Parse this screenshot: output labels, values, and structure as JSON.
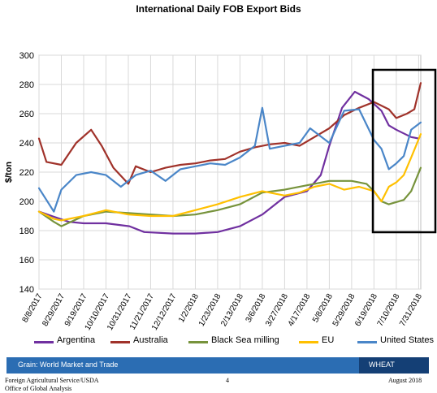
{
  "chart_data": {
    "type": "line",
    "title": "International Daily FOB Export Bids",
    "ylabel": "$/ton",
    "xlabel": "",
    "ylim": [
      140,
      300
    ],
    "yticks": [
      140,
      160,
      180,
      200,
      220,
      240,
      260,
      280,
      300
    ],
    "x_tick_labels": [
      "8/8/2017",
      "8/29/2017",
      "9/19/2017",
      "10/10/2017",
      "10/31/2017",
      "11/21/2017",
      "12/12/2017",
      "1/2/2018",
      "1/23/2018",
      "2/13/2018",
      "3/6/2018",
      "3/27/2018",
      "4/17/2018",
      "5/8/2018",
      "5/29/2018",
      "6/19/2018",
      "7/10/2018",
      "7/31/2018"
    ],
    "grid": true,
    "legend_position": "bottom",
    "highlight_box": {
      "from": "6/21/2018",
      "to": "8/2/2018",
      "color": "#000000"
    },
    "series": [
      {
        "name": "Argentina",
        "color": "#7030a0",
        "points": [
          [
            "8/8/2017",
            193
          ],
          [
            "8/20/2017",
            190
          ],
          [
            "9/5/2017",
            186
          ],
          [
            "9/19/2017",
            185
          ],
          [
            "10/10/2017",
            185
          ],
          [
            "11/1/2017",
            183
          ],
          [
            "11/15/2017",
            179
          ],
          [
            "12/12/2017",
            178
          ],
          [
            "1/2/2018",
            178
          ],
          [
            "1/23/2018",
            179
          ],
          [
            "2/13/2018",
            183
          ],
          [
            "3/6/2018",
            191
          ],
          [
            "3/20/2018",
            199
          ],
          [
            "3/27/2018",
            203
          ],
          [
            "4/17/2018",
            207
          ],
          [
            "4/30/2018",
            218
          ],
          [
            "5/8/2018",
            238
          ],
          [
            "5/20/2018",
            264
          ],
          [
            "6/1/2018",
            275
          ],
          [
            "6/14/2018",
            270
          ],
          [
            "6/26/2018",
            262
          ],
          [
            "7/3/2018",
            252
          ],
          [
            "7/10/2018",
            249
          ],
          [
            "7/24/2018",
            244
          ],
          [
            "7/31/2018",
            243
          ]
        ]
      },
      {
        "name": "Australia",
        "color": "#a0322a",
        "points": [
          [
            "8/8/2017",
            243
          ],
          [
            "8/15/2017",
            227
          ],
          [
            "8/29/2017",
            225
          ],
          [
            "9/12/2017",
            240
          ],
          [
            "9/26/2017",
            249
          ],
          [
            "10/6/2017",
            238
          ],
          [
            "10/17/2017",
            223
          ],
          [
            "10/31/2017",
            212
          ],
          [
            "11/7/2017",
            224
          ],
          [
            "11/21/2017",
            220
          ],
          [
            "12/5/2017",
            223
          ],
          [
            "12/19/2017",
            225
          ],
          [
            "1/2/2018",
            226
          ],
          [
            "1/16/2018",
            228
          ],
          [
            "1/30/2018",
            229
          ],
          [
            "2/13/2018",
            234
          ],
          [
            "2/27/2018",
            237
          ],
          [
            "3/13/2018",
            239
          ],
          [
            "3/27/2018",
            240
          ],
          [
            "4/10/2018",
            238
          ],
          [
            "4/24/2018",
            244
          ],
          [
            "5/8/2018",
            250
          ],
          [
            "5/22/2018",
            259
          ],
          [
            "6/5/2018",
            264
          ],
          [
            "6/19/2018",
            268
          ],
          [
            "7/3/2018",
            263
          ],
          [
            "7/10/2018",
            257
          ],
          [
            "7/20/2018",
            260
          ],
          [
            "7/27/2018",
            263
          ],
          [
            "8/2/2018",
            281
          ]
        ]
      },
      {
        "name": "Black Sea milling",
        "color": "#77933c",
        "points": [
          [
            "8/8/2017",
            193
          ],
          [
            "8/22/2017",
            186
          ],
          [
            "8/29/2017",
            183
          ],
          [
            "9/19/2017",
            190
          ],
          [
            "10/10/2017",
            193
          ],
          [
            "10/31/2017",
            192
          ],
          [
            "11/21/2017",
            191
          ],
          [
            "12/12/2017",
            190
          ],
          [
            "1/2/2018",
            191
          ],
          [
            "1/23/2018",
            194
          ],
          [
            "2/13/2018",
            198
          ],
          [
            "3/6/2018",
            206
          ],
          [
            "3/27/2018",
            208
          ],
          [
            "4/17/2018",
            211
          ],
          [
            "5/8/2018",
            214
          ],
          [
            "5/29/2018",
            214
          ],
          [
            "6/12/2018",
            212
          ],
          [
            "6/19/2018",
            207
          ],
          [
            "6/26/2018",
            200
          ],
          [
            "7/3/2018",
            198
          ],
          [
            "7/17/2018",
            201
          ],
          [
            "7/24/2018",
            207
          ],
          [
            "8/2/2018",
            223
          ]
        ]
      },
      {
        "name": "EU",
        "color": "#ffc000",
        "points": [
          [
            "8/8/2017",
            193
          ],
          [
            "8/22/2017",
            188
          ],
          [
            "8/29/2017",
            187
          ],
          [
            "9/19/2017",
            190
          ],
          [
            "10/10/2017",
            194
          ],
          [
            "10/31/2017",
            191
          ],
          [
            "11/21/2017",
            190
          ],
          [
            "12/12/2017",
            190
          ],
          [
            "1/2/2018",
            194
          ],
          [
            "1/23/2018",
            198
          ],
          [
            "2/13/2018",
            203
          ],
          [
            "3/6/2018",
            207
          ],
          [
            "3/27/2018",
            204
          ],
          [
            "4/10/2018",
            206
          ],
          [
            "4/24/2018",
            210
          ],
          [
            "5/8/2018",
            212
          ],
          [
            "5/22/2018",
            208
          ],
          [
            "6/5/2018",
            210
          ],
          [
            "6/19/2018",
            207
          ],
          [
            "6/26/2018",
            200
          ],
          [
            "7/3/2018",
            210
          ],
          [
            "7/10/2018",
            213
          ],
          [
            "7/17/2018",
            218
          ],
          [
            "7/24/2018",
            230
          ],
          [
            "8/2/2018",
            246
          ]
        ]
      },
      {
        "name": "United States",
        "color": "#4a86c8",
        "points": [
          [
            "8/8/2017",
            209
          ],
          [
            "8/22/2017",
            193
          ],
          [
            "8/29/2017",
            208
          ],
          [
            "9/12/2017",
            218
          ],
          [
            "9/26/2017",
            220
          ],
          [
            "10/10/2017",
            218
          ],
          [
            "10/24/2017",
            210
          ],
          [
            "11/7/2017",
            218
          ],
          [
            "11/21/2017",
            221
          ],
          [
            "12/5/2017",
            214
          ],
          [
            "12/19/2017",
            222
          ],
          [
            "1/2/2018",
            224
          ],
          [
            "1/16/2018",
            226
          ],
          [
            "1/30/2018",
            225
          ],
          [
            "2/13/2018",
            230
          ],
          [
            "2/27/2018",
            238
          ],
          [
            "3/6/2018",
            264
          ],
          [
            "3/13/2018",
            236
          ],
          [
            "3/27/2018",
            238
          ],
          [
            "4/10/2018",
            240
          ],
          [
            "4/20/2018",
            250
          ],
          [
            "5/8/2018",
            240
          ],
          [
            "5/22/2018",
            262
          ],
          [
            "6/5/2018",
            263
          ],
          [
            "6/19/2018",
            242
          ],
          [
            "6/26/2018",
            236
          ],
          [
            "7/3/2018",
            222
          ],
          [
            "7/10/2018",
            226
          ],
          [
            "7/17/2018",
            231
          ],
          [
            "7/24/2018",
            249
          ],
          [
            "8/2/2018",
            254
          ]
        ]
      }
    ]
  },
  "footer": {
    "bar_label": "Grain: World Market and Trade",
    "bar_tag": "WHEAT",
    "agency_line1": "Foreign Agricultural Service/USDA",
    "agency_line2": "Office of Global Analysis",
    "page_number": "4",
    "date": "August 2018"
  }
}
